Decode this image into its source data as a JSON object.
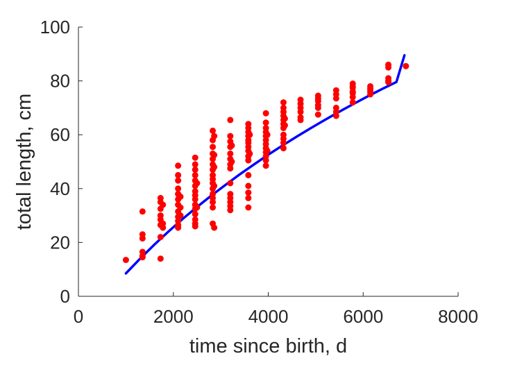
{
  "chart_data": {
    "type": "scatter",
    "xlabel": "time since birth, d",
    "ylabel": "total length, cm",
    "xlim": [
      0,
      8000
    ],
    "ylim": [
      0,
      100
    ],
    "xticks": [
      0,
      2000,
      4000,
      6000,
      8000
    ],
    "yticks": [
      0,
      20,
      40,
      60,
      80,
      100
    ],
    "xtick_labels": [
      "0",
      "2000",
      "4000",
      "6000",
      "8000"
    ],
    "ytick_labels": [
      "0",
      "20",
      "40",
      "60",
      "80",
      "100"
    ],
    "grid": false,
    "box": "left-bottom axes only",
    "series": [
      {
        "kind": "scatter",
        "color": "#ff0000",
        "points": [
          [
            1000,
            13.5
          ],
          [
            1350,
            31.5
          ],
          [
            1350,
            23.0
          ],
          [
            1350,
            21.5
          ],
          [
            1350,
            16.5
          ],
          [
            1350,
            15.0
          ],
          [
            1350,
            14.5
          ],
          [
            1730,
            36.5
          ],
          [
            1730,
            35.0
          ],
          [
            1730,
            32.5
          ],
          [
            1730,
            30.0
          ],
          [
            1730,
            28.5
          ],
          [
            1730,
            26.5
          ],
          [
            1730,
            22.0
          ],
          [
            1730,
            14.0
          ],
          [
            1780,
            34.0
          ],
          [
            1780,
            27.0
          ],
          [
            1780,
            25.5
          ],
          [
            2100,
            48.5
          ],
          [
            2100,
            45.0
          ],
          [
            2100,
            43.0
          ],
          [
            2100,
            40.0
          ],
          [
            2100,
            38.0
          ],
          [
            2100,
            36.0
          ],
          [
            2100,
            34.0
          ],
          [
            2100,
            31.5
          ],
          [
            2100,
            29.5
          ],
          [
            2100,
            28.0
          ],
          [
            2100,
            26.5
          ],
          [
            2100,
            25.5
          ],
          [
            2150,
            37.0
          ],
          [
            2150,
            33.0
          ],
          [
            2150,
            30.0
          ],
          [
            2460,
            51.5
          ],
          [
            2460,
            49.0
          ],
          [
            2460,
            47.0
          ],
          [
            2460,
            45.0
          ],
          [
            2460,
            43.0
          ],
          [
            2460,
            41.0
          ],
          [
            2460,
            39.0
          ],
          [
            2460,
            37.5
          ],
          [
            2460,
            36.0
          ],
          [
            2460,
            34.0
          ],
          [
            2460,
            32.5
          ],
          [
            2460,
            30.5
          ],
          [
            2460,
            28.5
          ],
          [
            2460,
            27.0
          ],
          [
            2460,
            26.0
          ],
          [
            2500,
            42.0
          ],
          [
            2500,
            33.0
          ],
          [
            2830,
            61.5
          ],
          [
            2830,
            58.0
          ],
          [
            2830,
            55.5
          ],
          [
            2830,
            53.0
          ],
          [
            2830,
            51.0
          ],
          [
            2830,
            49.0
          ],
          [
            2830,
            47.0
          ],
          [
            2830,
            45.0
          ],
          [
            2830,
            43.5
          ],
          [
            2830,
            42.0
          ],
          [
            2830,
            40.0
          ],
          [
            2830,
            38.0
          ],
          [
            2830,
            36.5
          ],
          [
            2830,
            35.0
          ],
          [
            2830,
            33.0
          ],
          [
            2830,
            27.0
          ],
          [
            2860,
            59.5
          ],
          [
            2860,
            52.5
          ],
          [
            2860,
            48.0
          ],
          [
            2860,
            41.0
          ],
          [
            2860,
            25.5
          ],
          [
            3200,
            65.5
          ],
          [
            3200,
            59.5
          ],
          [
            3200,
            57.5
          ],
          [
            3200,
            55.5
          ],
          [
            3200,
            53.0
          ],
          [
            3200,
            51.0
          ],
          [
            3200,
            49.0
          ],
          [
            3200,
            47.5
          ],
          [
            3200,
            42.0
          ],
          [
            3200,
            38.0
          ],
          [
            3200,
            36.5
          ],
          [
            3200,
            35.0
          ],
          [
            3200,
            33.5
          ],
          [
            3200,
            32.0
          ],
          [
            3230,
            56.0
          ],
          [
            3230,
            50.0
          ],
          [
            3580,
            64.0
          ],
          [
            3580,
            62.5
          ],
          [
            3580,
            61.0
          ],
          [
            3580,
            59.5
          ],
          [
            3580,
            58.0
          ],
          [
            3580,
            57.0
          ],
          [
            3580,
            55.5
          ],
          [
            3580,
            54.0
          ],
          [
            3580,
            52.0
          ],
          [
            3580,
            50.5
          ],
          [
            3580,
            45.0
          ],
          [
            3580,
            41.0
          ],
          [
            3580,
            38.5
          ],
          [
            3580,
            36.5
          ],
          [
            3580,
            33.0
          ],
          [
            3610,
            60.0
          ],
          [
            3610,
            53.0
          ],
          [
            3950,
            68.0
          ],
          [
            3950,
            64.5
          ],
          [
            3950,
            62.5
          ],
          [
            3950,
            61.0
          ],
          [
            3950,
            59.5
          ],
          [
            3950,
            58.0
          ],
          [
            3950,
            56.5
          ],
          [
            3950,
            55.0
          ],
          [
            3950,
            53.5
          ],
          [
            3950,
            52.0
          ],
          [
            3950,
            50.5
          ],
          [
            3950,
            48.5
          ],
          [
            3980,
            60.0
          ],
          [
            3980,
            54.0
          ],
          [
            4320,
            72.0
          ],
          [
            4320,
            70.0
          ],
          [
            4320,
            68.5
          ],
          [
            4320,
            67.0
          ],
          [
            4320,
            65.5
          ],
          [
            4320,
            64.0
          ],
          [
            4320,
            62.5
          ],
          [
            4320,
            60.0
          ],
          [
            4320,
            58.5
          ],
          [
            4320,
            57.0
          ],
          [
            4320,
            55.0
          ],
          [
            4350,
            66.0
          ],
          [
            4350,
            63.5
          ],
          [
            4680,
            73.0
          ],
          [
            4680,
            71.5
          ],
          [
            4680,
            70.0
          ],
          [
            4680,
            68.5
          ],
          [
            4680,
            66.5
          ],
          [
            4680,
            65.5
          ],
          [
            5050,
            74.5
          ],
          [
            5050,
            73.5
          ],
          [
            5050,
            72.5
          ],
          [
            5050,
            71.0
          ],
          [
            5050,
            70.0
          ],
          [
            5050,
            67.5
          ],
          [
            5430,
            76.5
          ],
          [
            5430,
            75.0
          ],
          [
            5430,
            73.5
          ],
          [
            5430,
            70.0
          ],
          [
            5430,
            68.5
          ],
          [
            5430,
            67.0
          ],
          [
            5780,
            79.0
          ],
          [
            5780,
            78.0
          ],
          [
            5780,
            77.5
          ],
          [
            5780,
            76.0
          ],
          [
            5780,
            75.5
          ],
          [
            5780,
            74.0
          ],
          [
            5780,
            72.0
          ],
          [
            6150,
            78.0
          ],
          [
            6150,
            77.0
          ],
          [
            6150,
            76.0
          ],
          [
            6150,
            75.0
          ],
          [
            6530,
            86.0
          ],
          [
            6530,
            85.0
          ],
          [
            6530,
            81.0
          ],
          [
            6530,
            80.0
          ],
          [
            6530,
            79.5
          ],
          [
            6900,
            85.5
          ]
        ]
      },
      {
        "kind": "line",
        "color": "#0000ff",
        "x": [
          1000,
          1300,
          1600,
          1900,
          2200,
          2500,
          2800,
          3100,
          3400,
          3700,
          4000,
          4300,
          4600,
          4900,
          5200,
          5500,
          5800,
          6100,
          6400,
          6700,
          6870
        ],
        "y": [
          8.5,
          14.0,
          19.2,
          24.1,
          28.8,
          33.2,
          37.4,
          41.4,
          45.3,
          49.0,
          52.6,
          56.0,
          59.3,
          62.5,
          65.6,
          68.6,
          71.5,
          74.3,
          77.0,
          79.6,
          89.5
        ]
      }
    ]
  }
}
